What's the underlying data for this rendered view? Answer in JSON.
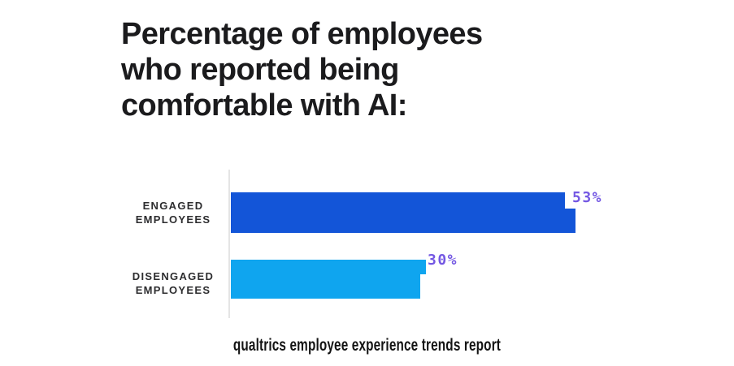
{
  "title": "Percentage of employees\nwho reported being\ncomfortable with AI:",
  "caption": "qualtrics employee experience trends report",
  "chart_data": {
    "type": "bar",
    "orientation": "horizontal",
    "title": "Percentage of employees who reported being comfortable with AI:",
    "source": "qualtrics employee experience trends report",
    "categories": [
      "ENGAGED EMPLOYEES",
      "DISENGAGED EMPLOYEES"
    ],
    "values": [
      53,
      30
    ],
    "value_labels": [
      "53%",
      "30%"
    ],
    "value_unit": "%",
    "xlim": [
      0,
      60
    ],
    "axes_visible": false,
    "gridlines": false,
    "legend": "none",
    "bar_colors": [
      "#1355d8",
      "#0fa5ef"
    ],
    "value_label_color": "#7458e3",
    "axis_line_color": "#e5e5e5",
    "title_color": "#1b1b1d",
    "category_label_color": "#2d2d2f",
    "background_color": "#ffffff"
  }
}
